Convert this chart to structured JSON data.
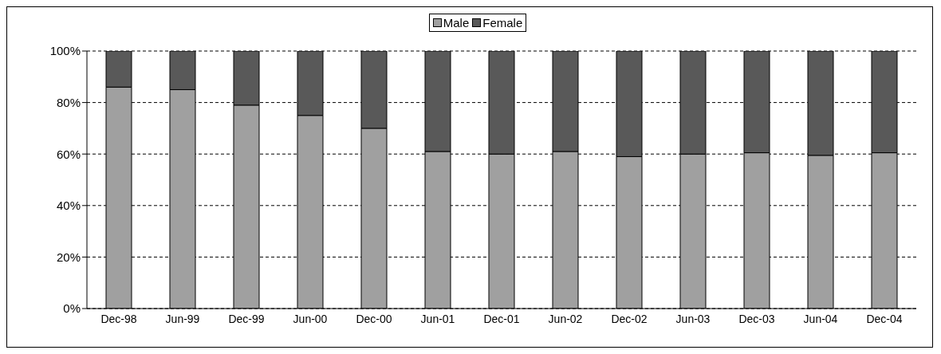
{
  "chart_data": {
    "type": "bar",
    "stacked": true,
    "categories": [
      "Dec-98",
      "Jun-99",
      "Dec-99",
      "Jun-00",
      "Dec-00",
      "Jun-01",
      "Dec-01",
      "Jun-02",
      "Dec-02",
      "Jun-03",
      "Dec-03",
      "Jun-04",
      "Dec-04"
    ],
    "series": [
      {
        "name": "Male",
        "color": "#a0a0a0",
        "values": [
          86,
          85,
          79,
          75,
          70,
          61,
          60,
          61,
          59,
          60,
          60.5,
          59.5,
          60.5
        ]
      },
      {
        "name": "Female",
        "color": "#595959",
        "values": [
          14,
          15,
          21,
          25,
          30,
          39,
          40,
          39,
          41,
          40,
          39.5,
          40.5,
          39.5
        ]
      }
    ],
    "ylim": [
      0,
      100
    ],
    "yticks": [
      {
        "value": 0,
        "label": "0%"
      },
      {
        "value": 20,
        "label": "20%"
      },
      {
        "value": 40,
        "label": "40%"
      },
      {
        "value": 60,
        "label": "60%"
      },
      {
        "value": 80,
        "label": "80%"
      },
      {
        "value": 100,
        "label": "100%"
      }
    ],
    "grid": "y",
    "legend": "top"
  }
}
